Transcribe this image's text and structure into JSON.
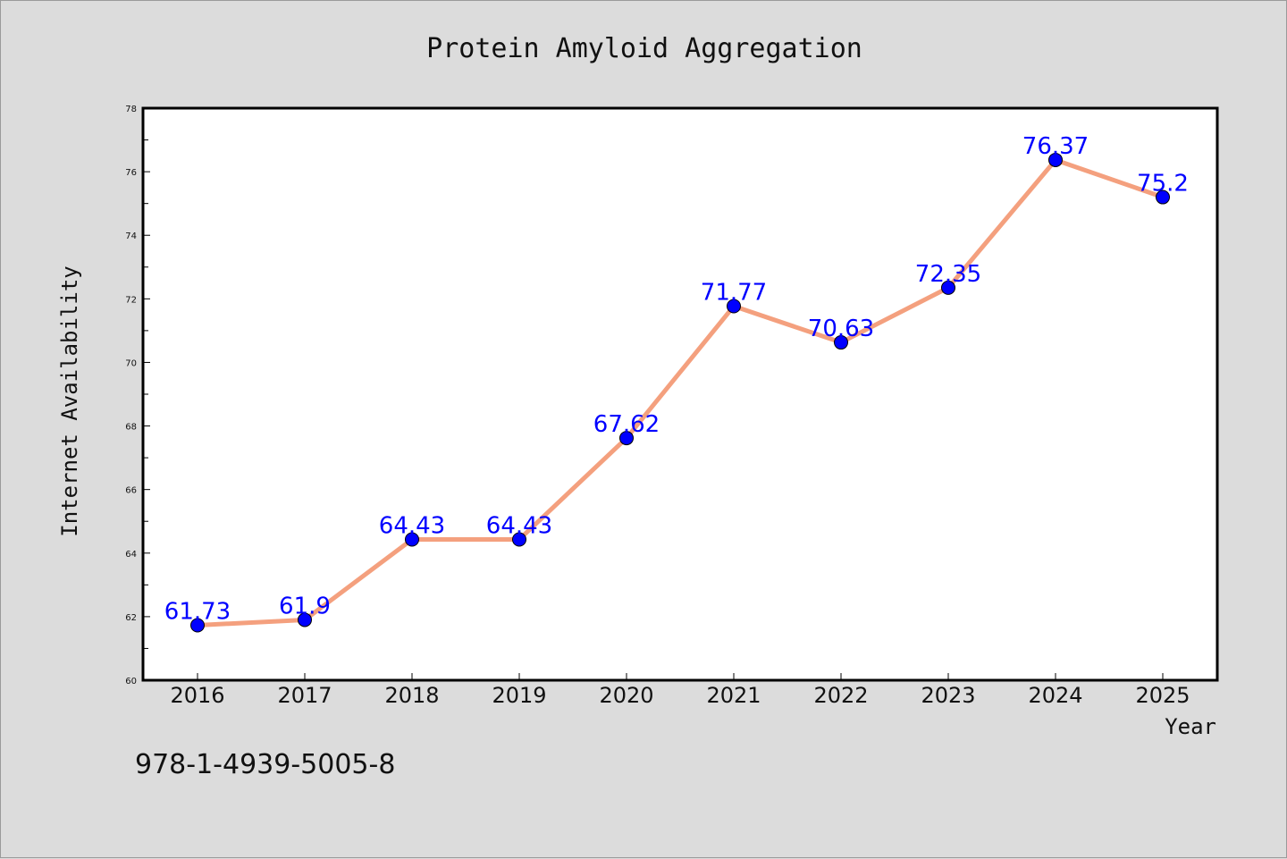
{
  "chart_data": {
    "type": "line",
    "title": "Protein Amyloid Aggregation",
    "xlabel": "Year",
    "ylabel": "Internet Availability",
    "categories": [
      "2016",
      "2017",
      "2018",
      "2019",
      "2020",
      "2021",
      "2022",
      "2023",
      "2024",
      "2025"
    ],
    "series": [
      {
        "values": [
          61.73,
          61.9,
          64.43,
          64.43,
          67.62,
          71.77,
          70.63,
          72.35,
          76.37,
          75.2
        ],
        "data_labels": [
          "61.73",
          "61.9",
          "64.43",
          "64.43",
          "67.62",
          "71.77",
          "70.63",
          "72.35",
          "76.37",
          "75.2"
        ]
      }
    ],
    "ylim": [
      60,
      78
    ],
    "yticks": [
      "60",
      "62",
      "64",
      "66",
      "68",
      "70",
      "72",
      "74",
      "76",
      "78"
    ],
    "grid": false,
    "line_color": "#f4a07e",
    "marker_color": "#0000ff",
    "label_color": "#0000ff"
  },
  "footer": {
    "isbn": "978-1-4939-5005-8"
  }
}
